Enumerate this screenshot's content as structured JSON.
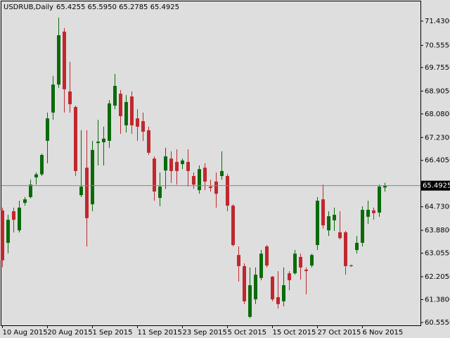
{
  "chart_data": {
    "type": "candlestick",
    "title": "USDRUB,Daily",
    "subtitle": "65.4255 65.5950 65.2785 65.4925",
    "categories": [
      "10 Aug 2015",
      null,
      null,
      null,
      null,
      null,
      null,
      null,
      "20 Aug 2015",
      null,
      null,
      null,
      null,
      null,
      null,
      null,
      "1 Sep 2015",
      null,
      null,
      null,
      null,
      null,
      null,
      null,
      "11 Sep 2015",
      null,
      null,
      null,
      null,
      null,
      null,
      null,
      "23 Sep 2015",
      null,
      null,
      null,
      null,
      null,
      null,
      null,
      "5 Oct 2015",
      null,
      null,
      null,
      null,
      null,
      null,
      null,
      "15 Oct 2015",
      null,
      null,
      null,
      null,
      null,
      null,
      null,
      "27 Oct 2015",
      null,
      null,
      null,
      null,
      null,
      null,
      null,
      "6 Nov 2015",
      null,
      null,
      null,
      null
    ],
    "open": [
      64.6,
      63.43,
      64.57,
      63.88,
      64.87,
      65.08,
      65.79,
      65.9,
      67.11,
      68.13,
      69.14,
      71.05,
      68.89,
      68.33,
      65.15,
      66.14,
      64.82,
      67.03,
      67.06,
      67.11,
      68.38,
      68.81,
      67.67,
      68.71,
      67.92,
      67.82,
      67.49,
      66.47,
      65.05,
      66.04,
      66.47,
      66.35,
      66.27,
      66.35,
      65.84,
      65.33,
      66.14,
      65.46,
      65.64,
      65.84,
      65.84,
      64.77,
      62.99,
      62.59,
      60.76,
      61.39,
      62.16,
      63.3,
      62.21,
      61.47,
      61.32,
      62.33,
      62.33,
      62.92,
      62.46,
      62.61,
      63.35,
      65.0,
      63.88,
      64.24,
      63.81,
      63.81,
      62.62,
      63.17,
      63.43,
      64.37,
      64.6,
      64.52,
      65.4255
    ],
    "high": [
      64.7,
      64.44,
      64.7,
      64.95,
      65.08,
      65.71,
      65.97,
      66.65,
      68.13,
      69.45,
      71.56,
      71.18,
      69.96,
      68.38,
      67.49,
      67.49,
      67.11,
      67.87,
      67.62,
      68.58,
      69.52,
      68.94,
      68.76,
      68.89,
      68.25,
      68.13,
      67.62,
      66.55,
      65.97,
      66.86,
      66.73,
      66.8,
      66.47,
      66.8,
      65.97,
      66.22,
      66.3,
      65.71,
      65.97,
      66.73,
      65.92,
      64.82,
      63.3,
      62.69,
      62.54,
      62.54,
      63.17,
      63.35,
      62.23,
      62.41,
      62.54,
      62.41,
      63.17,
      63.04,
      62.54,
      63.04,
      65.08,
      65.53,
      64.57,
      64.7,
      64.57,
      63.86,
      62.64,
      63.68,
      64.75,
      64.95,
      64.7,
      65.53,
      65.595
    ],
    "low": [
      62.55,
      63.05,
      63.8,
      63.8,
      64.77,
      65.03,
      65.53,
      65.84,
      66.3,
      67.87,
      69.02,
      68.13,
      68.13,
      65.84,
      65.08,
      63.3,
      64.57,
      66.22,
      66.22,
      66.86,
      68.25,
      67.36,
      67.41,
      67.36,
      67.11,
      67.11,
      66.6,
      64.95,
      64.75,
      65.38,
      65.59,
      65.53,
      66.09,
      65.46,
      65.38,
      65.2,
      65.33,
      65.28,
      64.7,
      65.71,
      64.57,
      63.3,
      62.03,
      61.22,
      60.71,
      61.22,
      62.08,
      62.54,
      61.32,
      61.06,
      61.14,
      61.72,
      62.28,
      62.1,
      61.57,
      62.54,
      63.17,
      63.94,
      63.68,
      63.86,
      63.55,
      62.28,
      62.56,
      63.04,
      63.3,
      64.11,
      64.26,
      64.37,
      65.2785
    ],
    "close": [
      62.8,
      64.26,
      64.26,
      64.7,
      65.0,
      65.53,
      65.9,
      66.6,
      67.92,
      69.14,
      70.92,
      68.97,
      68.43,
      66.02,
      65.46,
      64.32,
      66.78,
      67.08,
      67.19,
      68.46,
      69.09,
      68.0,
      68.51,
      67.67,
      67.62,
      67.44,
      66.68,
      65.28,
      65.46,
      66.55,
      66.02,
      66.02,
      66.4,
      66.02,
      65.53,
      66.09,
      65.64,
      65.41,
      65.2,
      66.02,
      64.77,
      63.35,
      62.59,
      61.32,
      61.9,
      62.28,
      63.04,
      62.61,
      61.39,
      61.22,
      61.9,
      62.08,
      63.04,
      62.54,
      62.41,
      62.99,
      64.95,
      64.06,
      64.39,
      64.44,
      63.6,
      62.59,
      62.59,
      63.43,
      64.62,
      64.62,
      64.5,
      65.46,
      65.4925
    ],
    "up_color": "#0b6b0b",
    "down_color": "#c0282d",
    "current_price": 65.4925,
    "ylim": [
      60.453,
      72.14
    ],
    "yticks": [
      {
        "value": 71.43,
        "label": "71.4300"
      },
      {
        "value": 70.555,
        "label": "70.5550"
      },
      {
        "value": 69.755,
        "label": "69.7550"
      },
      {
        "value": 68.905,
        "label": "68.9050"
      },
      {
        "value": 68.08,
        "label": "68.0800"
      },
      {
        "value": 67.23,
        "label": "67.2300"
      },
      {
        "value": 66.405,
        "label": "66.4050"
      },
      {
        "value": 64.73,
        "label": "64.7300"
      },
      {
        "value": 63.88,
        "label": "63.8800"
      },
      {
        "value": 63.055,
        "label": "63.0550"
      },
      {
        "value": 62.205,
        "label": "62.2050"
      },
      {
        "value": 61.38,
        "label": "61.3800"
      },
      {
        "value": 60.555,
        "label": "60.5550"
      }
    ]
  }
}
